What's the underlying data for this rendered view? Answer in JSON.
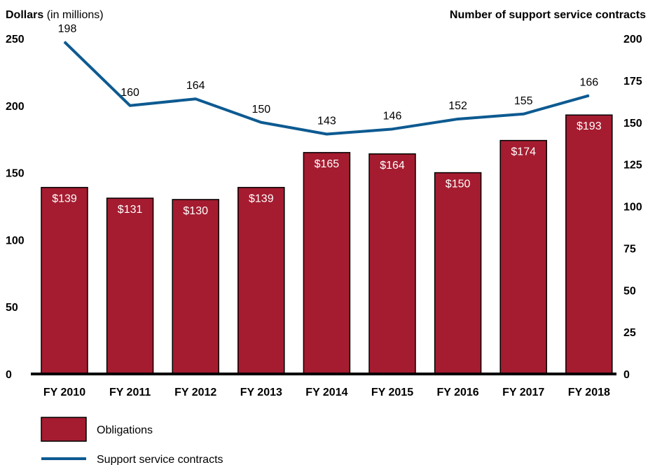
{
  "chart_data": {
    "type": "bar",
    "categories": [
      "FY 2010",
      "FY 2011",
      "FY 2012",
      "FY 2013",
      "FY 2014",
      "FY 2015",
      "FY 2016",
      "FY 2017",
      "FY 2018"
    ],
    "series": [
      {
        "name": "Obligations",
        "type": "bar",
        "axis": "left",
        "values": [
          139,
          131,
          130,
          139,
          165,
          164,
          150,
          174,
          193
        ],
        "labels": [
          "$139",
          "$131",
          "$130",
          "$139",
          "$165",
          "$164",
          "$150",
          "$174",
          "$193"
        ],
        "color": "#a51c30"
      },
      {
        "name": "Support service contracts",
        "type": "line",
        "axis": "right",
        "values": [
          198,
          160,
          164,
          150,
          143,
          146,
          152,
          155,
          166
        ],
        "labels": [
          "198",
          "160",
          "164",
          "150",
          "143",
          "146",
          "152",
          "155",
          "166"
        ],
        "color": "#0d5a91"
      }
    ],
    "left_axis": {
      "title_bold": "Dollars",
      "title_rest": " (in millions)",
      "range": [
        0,
        250
      ],
      "ticks": [
        "0",
        "50",
        "100",
        "150",
        "200",
        "250"
      ]
    },
    "right_axis": {
      "title": "Number of support service contracts",
      "range": [
        0,
        200
      ],
      "ticks": [
        "0",
        "25",
        "50",
        "75",
        "100",
        "125",
        "150",
        "175",
        "200"
      ]
    },
    "legend": {
      "placement": "bottom-left",
      "entries": [
        "Obligations",
        "Support service contracts"
      ]
    },
    "grid": false
  }
}
